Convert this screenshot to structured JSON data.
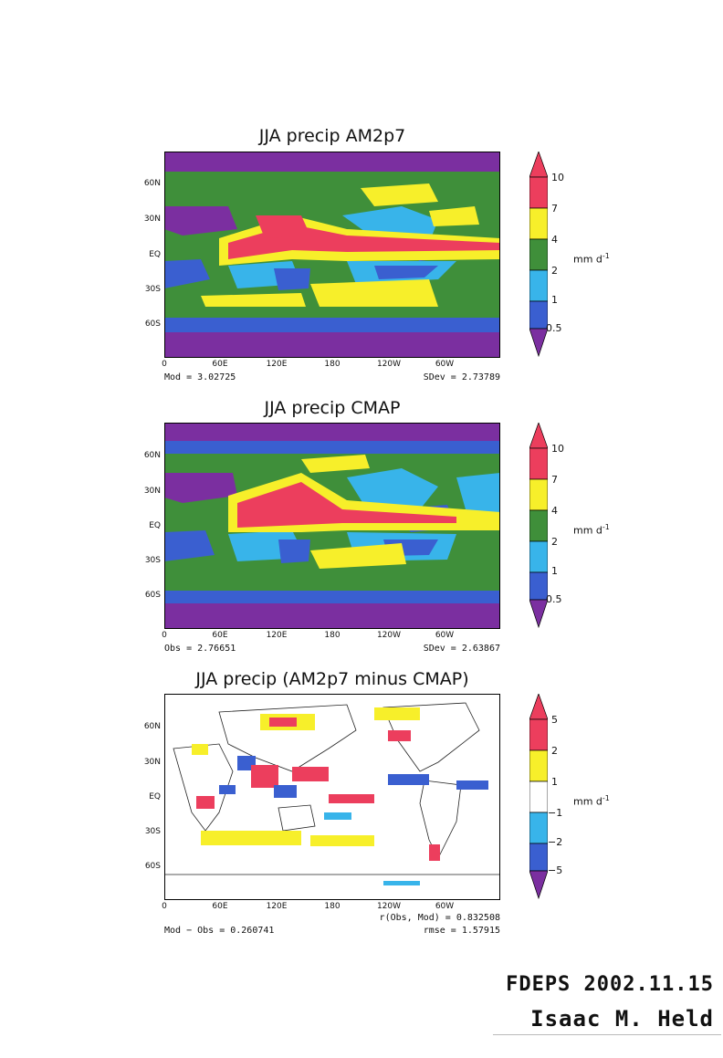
{
  "colors": {
    "purple": "#7b2fa0",
    "blue": "#3a5fd0",
    "lightblue": "#38b4ea",
    "green": "#3f8f3a",
    "yellow": "#f7ef2a",
    "red": "#ec3e5d",
    "white": "#ffffff"
  },
  "chart_data": [
    {
      "type": "heatmap",
      "title": "JJA precip AM2p7",
      "yticks": [
        "60N",
        "30N",
        "EQ",
        "30S",
        "60S"
      ],
      "xticks": [
        "0",
        "60E",
        "120E",
        "180",
        "120W",
        "60W"
      ],
      "colorbar_levels": [
        "10",
        "7",
        "4",
        "2",
        "1",
        "0.5"
      ],
      "colorbar_colors": [
        "red",
        "yellow",
        "green",
        "lightblue",
        "blue"
      ],
      "unit": "mm d",
      "unit_exp": "-1",
      "stat_left": "Mod = 3.02725",
      "stat_right": "SDev = 2.73789"
    },
    {
      "type": "heatmap",
      "title": "JJA precip CMAP",
      "yticks": [
        "60N",
        "30N",
        "EQ",
        "30S",
        "60S"
      ],
      "xticks": [
        "0",
        "60E",
        "120E",
        "180",
        "120W",
        "60W"
      ],
      "colorbar_levels": [
        "10",
        "7",
        "4",
        "2",
        "1",
        "0.5"
      ],
      "colorbar_colors": [
        "red",
        "yellow",
        "green",
        "lightblue",
        "blue"
      ],
      "unit": "mm d",
      "unit_exp": "-1",
      "stat_left": "Obs = 2.76651",
      "stat_right": "SDev = 2.63867"
    },
    {
      "type": "heatmap",
      "title": "JJA precip (AM2p7 minus CMAP)",
      "yticks": [
        "60N",
        "30N",
        "EQ",
        "30S",
        "60S"
      ],
      "xticks": [
        "0",
        "60E",
        "120E",
        "180",
        "120W",
        "60W"
      ],
      "colorbar_levels": [
        "5",
        "2",
        "1",
        "−1",
        "−2",
        "−5"
      ],
      "colorbar_colors": [
        "red",
        "yellow",
        "white",
        "lightblue",
        "blue"
      ],
      "unit": "mm d",
      "unit_exp": "-1",
      "stat_left": "Mod − Obs = 0.260741",
      "stat_right_1": "r(Obs, Mod) = 0.832508",
      "stat_right_2": "rmse = 1.57915"
    }
  ],
  "signature": {
    "line1": "FDEPS 2002.11.15",
    "line2": "Isaac M. Held"
  }
}
